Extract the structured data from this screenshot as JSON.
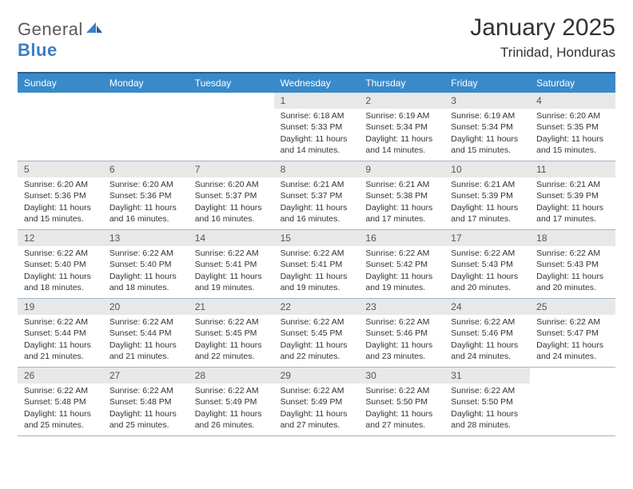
{
  "logo": {
    "text_general": "General",
    "text_blue": "Blue"
  },
  "title": "January 2025",
  "location": "Trinidad, Honduras",
  "colors": {
    "header_bg": "#3a8ac9",
    "header_border_top": "#345b85",
    "row_divider": "#9fb4c9",
    "daynum_bg": "#e8e8e8",
    "text": "#333333",
    "logo_gray": "#5a5a5a",
    "logo_blue": "#3b7fc4"
  },
  "days_of_week": [
    "Sunday",
    "Monday",
    "Tuesday",
    "Wednesday",
    "Thursday",
    "Friday",
    "Saturday"
  ],
  "leading_blank_cells": 3,
  "days": [
    {
      "n": "1",
      "sunrise": "6:18 AM",
      "sunset": "5:33 PM",
      "dl": "11 hours and 14 minutes."
    },
    {
      "n": "2",
      "sunrise": "6:19 AM",
      "sunset": "5:34 PM",
      "dl": "11 hours and 14 minutes."
    },
    {
      "n": "3",
      "sunrise": "6:19 AM",
      "sunset": "5:34 PM",
      "dl": "11 hours and 15 minutes."
    },
    {
      "n": "4",
      "sunrise": "6:20 AM",
      "sunset": "5:35 PM",
      "dl": "11 hours and 15 minutes."
    },
    {
      "n": "5",
      "sunrise": "6:20 AM",
      "sunset": "5:36 PM",
      "dl": "11 hours and 15 minutes."
    },
    {
      "n": "6",
      "sunrise": "6:20 AM",
      "sunset": "5:36 PM",
      "dl": "11 hours and 16 minutes."
    },
    {
      "n": "7",
      "sunrise": "6:20 AM",
      "sunset": "5:37 PM",
      "dl": "11 hours and 16 minutes."
    },
    {
      "n": "8",
      "sunrise": "6:21 AM",
      "sunset": "5:37 PM",
      "dl": "11 hours and 16 minutes."
    },
    {
      "n": "9",
      "sunrise": "6:21 AM",
      "sunset": "5:38 PM",
      "dl": "11 hours and 17 minutes."
    },
    {
      "n": "10",
      "sunrise": "6:21 AM",
      "sunset": "5:39 PM",
      "dl": "11 hours and 17 minutes."
    },
    {
      "n": "11",
      "sunrise": "6:21 AM",
      "sunset": "5:39 PM",
      "dl": "11 hours and 17 minutes."
    },
    {
      "n": "12",
      "sunrise": "6:22 AM",
      "sunset": "5:40 PM",
      "dl": "11 hours and 18 minutes."
    },
    {
      "n": "13",
      "sunrise": "6:22 AM",
      "sunset": "5:40 PM",
      "dl": "11 hours and 18 minutes."
    },
    {
      "n": "14",
      "sunrise": "6:22 AM",
      "sunset": "5:41 PM",
      "dl": "11 hours and 19 minutes."
    },
    {
      "n": "15",
      "sunrise": "6:22 AM",
      "sunset": "5:41 PM",
      "dl": "11 hours and 19 minutes."
    },
    {
      "n": "16",
      "sunrise": "6:22 AM",
      "sunset": "5:42 PM",
      "dl": "11 hours and 19 minutes."
    },
    {
      "n": "17",
      "sunrise": "6:22 AM",
      "sunset": "5:43 PM",
      "dl": "11 hours and 20 minutes."
    },
    {
      "n": "18",
      "sunrise": "6:22 AM",
      "sunset": "5:43 PM",
      "dl": "11 hours and 20 minutes."
    },
    {
      "n": "19",
      "sunrise": "6:22 AM",
      "sunset": "5:44 PM",
      "dl": "11 hours and 21 minutes."
    },
    {
      "n": "20",
      "sunrise": "6:22 AM",
      "sunset": "5:44 PM",
      "dl": "11 hours and 21 minutes."
    },
    {
      "n": "21",
      "sunrise": "6:22 AM",
      "sunset": "5:45 PM",
      "dl": "11 hours and 22 minutes."
    },
    {
      "n": "22",
      "sunrise": "6:22 AM",
      "sunset": "5:45 PM",
      "dl": "11 hours and 22 minutes."
    },
    {
      "n": "23",
      "sunrise": "6:22 AM",
      "sunset": "5:46 PM",
      "dl": "11 hours and 23 minutes."
    },
    {
      "n": "24",
      "sunrise": "6:22 AM",
      "sunset": "5:46 PM",
      "dl": "11 hours and 24 minutes."
    },
    {
      "n": "25",
      "sunrise": "6:22 AM",
      "sunset": "5:47 PM",
      "dl": "11 hours and 24 minutes."
    },
    {
      "n": "26",
      "sunrise": "6:22 AM",
      "sunset": "5:48 PM",
      "dl": "11 hours and 25 minutes."
    },
    {
      "n": "27",
      "sunrise": "6:22 AM",
      "sunset": "5:48 PM",
      "dl": "11 hours and 25 minutes."
    },
    {
      "n": "28",
      "sunrise": "6:22 AM",
      "sunset": "5:49 PM",
      "dl": "11 hours and 26 minutes."
    },
    {
      "n": "29",
      "sunrise": "6:22 AM",
      "sunset": "5:49 PM",
      "dl": "11 hours and 27 minutes."
    },
    {
      "n": "30",
      "sunrise": "6:22 AM",
      "sunset": "5:50 PM",
      "dl": "11 hours and 27 minutes."
    },
    {
      "n": "31",
      "sunrise": "6:22 AM",
      "sunset": "5:50 PM",
      "dl": "11 hours and 28 minutes."
    }
  ],
  "labels": {
    "sunrise": "Sunrise: ",
    "sunset": "Sunset: ",
    "daylight": "Daylight: "
  }
}
